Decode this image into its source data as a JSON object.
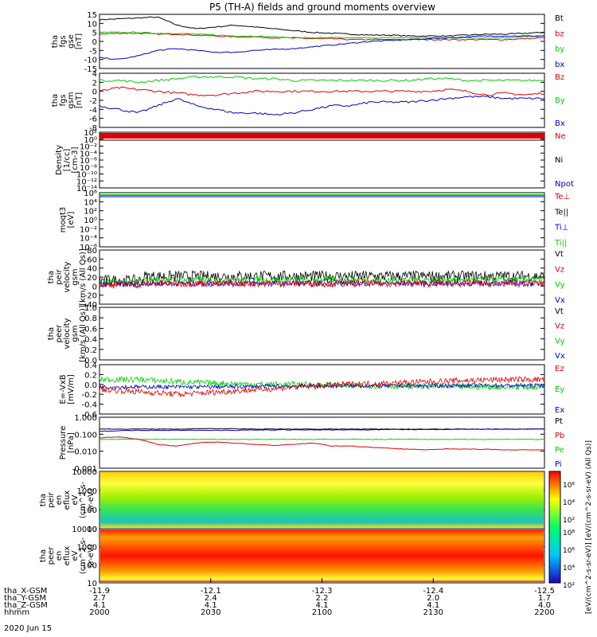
{
  "title": "P5 (TH-A) fields and ground moments overview",
  "date_label": "2020 Jun 15",
  "colors": {
    "black": "#000000",
    "red": "#e00000",
    "green": "#00d000",
    "blue": "#0000c8",
    "panel_bg": "#ffffff"
  },
  "chart_data": [
    {
      "type": "line",
      "panel": "fgs_gse",
      "ylabel": [
        "tha",
        "fgs",
        "gse",
        "[nT]"
      ],
      "ylim": [
        -15,
        15
      ],
      "yticks": [
        "15",
        "10",
        "5",
        "0",
        "-5",
        "-10",
        "-15"
      ],
      "legend": [
        "Bt",
        "bz",
        "by",
        "bx"
      ],
      "series": [
        {
          "name": "Bt",
          "color": "black",
          "values": [
            12,
            12.5,
            13,
            13.5,
            9,
            7,
            8,
            9,
            8,
            7,
            6,
            5,
            4.5,
            4,
            3.5,
            3.5,
            3,
            3,
            3,
            3.5,
            4,
            4,
            4.5,
            5
          ]
        },
        {
          "name": "bz",
          "color": "red",
          "values": [
            4,
            4.5,
            4.5,
            4,
            4,
            3.5,
            3,
            2.5,
            2.5,
            2,
            2,
            1.5,
            1.5,
            1,
            1,
            1,
            1,
            1,
            1,
            1,
            1,
            1,
            1.5,
            2
          ]
        },
        {
          "name": "by",
          "color": "green",
          "values": [
            5,
            5,
            5,
            4.5,
            4.5,
            4,
            3.5,
            3,
            3,
            2.5,
            2,
            2,
            2,
            2,
            2,
            2,
            2,
            2,
            2,
            2,
            2,
            2,
            2.5,
            3
          ]
        },
        {
          "name": "bx",
          "color": "blue",
          "values": [
            -9,
            -10,
            -8,
            -5,
            -4,
            -5,
            -6,
            -6,
            -5,
            -4.5,
            -4,
            -3,
            -2,
            -1,
            0,
            0.5,
            1,
            1.5,
            2,
            2.5,
            3,
            3,
            3,
            3
          ]
        }
      ]
    },
    {
      "type": "line",
      "panel": "fgs_gsm",
      "ylabel": [
        "tha",
        "fgs",
        "gsm",
        "[nT]"
      ],
      "ylim": [
        -10,
        5
      ],
      "yticks": [
        "4",
        "2",
        "0",
        "-2",
        "-4",
        "-6",
        "-8"
      ],
      "legend": [
        "Bz",
        "By",
        "Bx"
      ],
      "series": [
        {
          "name": "Bz",
          "color": "red",
          "values": [
            0,
            1,
            0.5,
            0,
            -0.5,
            -1,
            -1,
            -0.5,
            0,
            0,
            0,
            0,
            0,
            0,
            0,
            0,
            0,
            0,
            0.5,
            0,
            -1,
            -0.5,
            -1,
            -0.5
          ]
        },
        {
          "name": "By",
          "color": "green",
          "values": [
            3,
            3,
            2.5,
            3,
            3.5,
            4,
            4,
            4,
            3.5,
            3.5,
            3,
            3,
            3,
            3,
            3,
            3,
            3,
            3.5,
            3.5,
            3,
            3,
            3,
            3,
            3
          ]
        },
        {
          "name": "Bx",
          "color": "blue",
          "values": [
            -4,
            -5,
            -6,
            -4,
            -2,
            -4,
            -5,
            -6,
            -6,
            -6.5,
            -6,
            -5,
            -4,
            -4,
            -3,
            -3,
            -3,
            -2.5,
            -2,
            -1.5,
            -1.5,
            -2,
            -2,
            -2
          ]
        }
      ]
    },
    {
      "type": "line",
      "panel": "density",
      "ylabel": [
        "Density",
        "[1/cc]",
        "[cm-3]"
      ],
      "ylim": [
        -14,
        2
      ],
      "log": true,
      "yticks": [
        "10²",
        "10⁰",
        "10⁻²",
        "10⁻⁴",
        "10⁻⁶",
        "10⁻⁸",
        "10⁻¹⁰",
        "10⁻¹²",
        "10⁻¹⁴"
      ],
      "legend": [
        "Ne",
        "Ni",
        "Npot"
      ]
    },
    {
      "type": "line",
      "panel": "temperature",
      "ylabel": [
        "moqt3",
        "[eV]"
      ],
      "ylim": [
        -6,
        6
      ],
      "log": true,
      "yticks": [
        "10⁶",
        "10⁴",
        "10²",
        "10⁰",
        "10⁻²",
        "10⁻⁴",
        "10⁻⁶"
      ],
      "legend": [
        "Te⊥",
        "Te||",
        "Ti⊥",
        "Ti||"
      ]
    },
    {
      "type": "line",
      "panel": "peir_velocity",
      "ylabel": [
        "tha",
        "peir",
        "velocity",
        "gsm",
        "[km/s (All Qs)]"
      ],
      "ylim": [
        -40,
        80
      ],
      "yticks": [
        "80",
        "60",
        "40",
        "20",
        "0",
        "-20",
        "-40"
      ],
      "legend": [
        "Vt",
        "Vz",
        "Vy",
        "Vx"
      ]
    },
    {
      "type": "line",
      "panel": "peer_velocity",
      "ylabel": [
        "tha",
        "peer",
        "velocity",
        "gsm",
        "[km/s (All Qs)]"
      ],
      "ylim": [
        0,
        1
      ],
      "yticks": [
        "1.0",
        "0.8",
        "0.6",
        "0.4",
        "0.2",
        "0.0"
      ],
      "legend": [
        "Vt",
        "Vz",
        "Vy",
        "Vx"
      ]
    },
    {
      "type": "line",
      "panel": "efield",
      "ylabel": [
        "E=-VxB",
        "[mV/m]"
      ],
      "ylim": [
        -0.6,
        0.4
      ],
      "yticks": [
        "0.4",
        "0.2",
        "0.0",
        "-0.2",
        "-0.4",
        "-0.6"
      ],
      "legend": [
        "Ez",
        "Ey",
        "Ex"
      ]
    },
    {
      "type": "line",
      "panel": "pressure",
      "ylabel": [
        "Pressure",
        "[nPa]"
      ],
      "ylim": [
        0.001,
        1
      ],
      "log": true,
      "yticks": [
        "1.000",
        "0.100",
        "0.010",
        "0.001"
      ],
      "legend": [
        "Pt",
        "Pb",
        "Pe",
        "Pi"
      ],
      "series": [
        {
          "name": "Pt",
          "color": "black",
          "values": [
            0.2,
            0.2,
            0.2,
            0.2,
            0.2,
            0.21,
            0.21,
            0.21,
            0.2,
            0.2,
            0.2,
            0.2,
            0.2,
            0.2,
            0.2,
            0.2,
            0.2,
            0.2,
            0.2,
            0.2,
            0.2,
            0.2,
            0.2,
            0.21
          ]
        },
        {
          "name": "Pb",
          "color": "blue",
          "values": [
            0.15,
            0.16,
            0.17,
            0.17,
            0.17,
            0.17,
            0.17,
            0.17,
            0.18,
            0.18,
            0.18,
            0.18,
            0.18,
            0.18,
            0.18,
            0.19,
            0.19,
            0.19,
            0.19,
            0.2,
            0.2,
            0.2,
            0.2,
            0.2
          ]
        },
        {
          "name": "Pe",
          "color": "green",
          "values": [
            0.05,
            0.05,
            0.05,
            0.05,
            0.05,
            0.05,
            0.05,
            0.05,
            0.05,
            0.05,
            0.05,
            0.05,
            0.05,
            0.05,
            0.05,
            0.05,
            0.05,
            0.05,
            0.05,
            0.05,
            0.05,
            0.05,
            0.05,
            0.05
          ]
        },
        {
          "name": "Pi",
          "color": "red",
          "values": [
            0.06,
            0.07,
            0.05,
            0.025,
            0.02,
            0.03,
            0.035,
            0.03,
            0.025,
            0.022,
            0.025,
            0.03,
            0.02,
            0.02,
            0.017,
            0.015,
            0.013,
            0.012,
            0.014,
            0.013,
            0.013,
            0.012,
            0.012,
            0.012
          ]
        }
      ]
    },
    {
      "type": "heatmap",
      "panel": "peir_en_eflux",
      "ylabel": [
        "tha",
        "peir",
        "en",
        "eflux",
        "eV",
        "(cm^2-s-",
        "sr-eV)"
      ],
      "ylim": [
        5,
        20000
      ],
      "log": true,
      "yticks": [
        "10000",
        "1000",
        "100",
        "10"
      ],
      "colorbar_ticks": [
        "10⁶",
        "10⁴",
        "10²"
      ]
    },
    {
      "type": "heatmap",
      "panel": "peer_en_eflux",
      "ylabel": [
        "tha",
        "peer",
        "en",
        "eflux",
        "eV",
        "(cm^2-s-",
        "sr-eV)"
      ],
      "ylim": [
        5,
        20000
      ],
      "log": true,
      "yticks": [
        "10000",
        "1000",
        "100",
        "10"
      ],
      "colorbar_ticks": [
        "10⁸",
        "10⁶",
        "10⁴",
        "10²"
      ]
    }
  ],
  "colorbar_label": "[eV/(cm^2-s-sr-eV)] [eV/(cm^2-s-sr-eV) (All Qs)]",
  "xaxis": {
    "row_labels": [
      "tha_X-GSM",
      "tha_Y-GSM",
      "tha_Z-GSM",
      "hhmm"
    ],
    "columns": [
      [
        "-11.9",
        "2.7",
        "4.1",
        "2000"
      ],
      [
        "-12.1",
        "2.4",
        "4.1",
        "2030"
      ],
      [
        "-12.3",
        "2.2",
        "4.1",
        "2100"
      ],
      [
        "-12.4",
        "2.0",
        "4.1",
        "2130"
      ],
      [
        "-12.5",
        "1.7",
        "4.0",
        "2200"
      ]
    ]
  }
}
